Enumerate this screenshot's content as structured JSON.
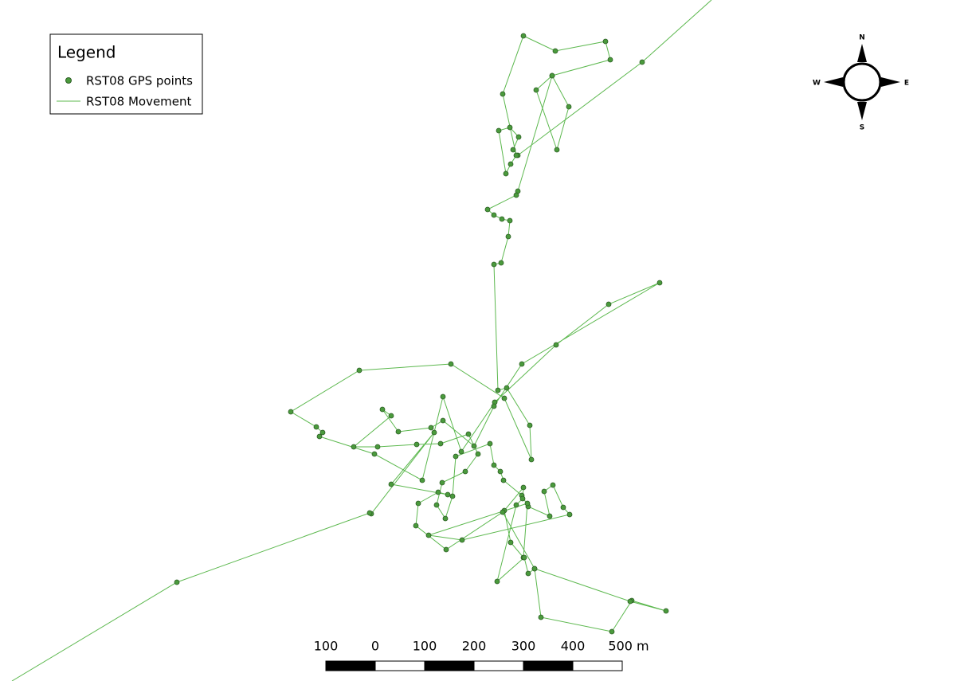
{
  "legend": {
    "title": "Legend",
    "items": [
      "RST08 GPS points",
      "RST08 Movement"
    ]
  },
  "compass": {
    "north": "N",
    "east": "E",
    "south": "S",
    "west": "W"
  },
  "scale_bar": {
    "labels": [
      "100",
      "0",
      "100",
      "200",
      "300",
      "400",
      "500 m"
    ]
  }
}
